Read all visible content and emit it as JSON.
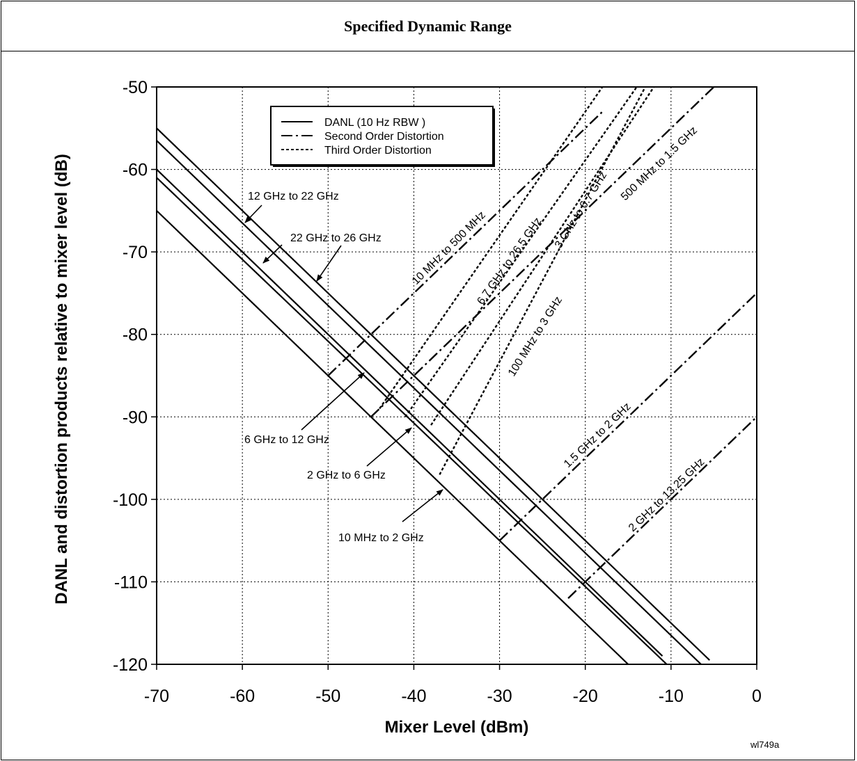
{
  "header": {
    "title": "Specified Dynamic Range"
  },
  "figure_id": "wl749a",
  "colors": {
    "line": "#000000",
    "grid": "#000000",
    "background": "#ffffff"
  },
  "chart_data": {
    "type": "line",
    "title": "",
    "xlabel": "Mixer Level (dBm)",
    "ylabel": "DANL and distortion products relative to mixer level (dB)",
    "xlim": [
      -70,
      0
    ],
    "ylim": [
      -120,
      -50
    ],
    "xticks": [
      -70,
      -60,
      -50,
      -40,
      -30,
      -20,
      -10,
      0
    ],
    "yticks": [
      -50,
      -60,
      -70,
      -80,
      -90,
      -100,
      -110,
      -120
    ],
    "grid": true,
    "legend": {
      "position": "top-left",
      "entries": [
        {
          "label": "DANL (10 Hz RBW )",
          "style": "solid"
        },
        {
          "label": "Second Order Distortion",
          "style": "dashdot"
        },
        {
          "label": "Third Order Distortion",
          "style": "dotted"
        }
      ]
    },
    "series": [
      {
        "name": "12 GHz to 22 GHz",
        "kind": "DANL",
        "style": "solid",
        "x": [
          -70,
          -5.5
        ],
        "y": [
          -55,
          -119.5
        ]
      },
      {
        "name": "22 GHz to 26 GHz",
        "kind": "DANL",
        "style": "solid",
        "x": [
          -70,
          -6.5
        ],
        "y": [
          -56.5,
          -120
        ]
      },
      {
        "name": "6 GHz to 12 GHz",
        "kind": "DANL",
        "style": "solid",
        "x": [
          -70,
          -11
        ],
        "y": [
          -60,
          -119
        ]
      },
      {
        "name": "2 GHz to 6 GHz",
        "kind": "DANL",
        "style": "solid",
        "x": [
          -70,
          -10.5
        ],
        "y": [
          -61,
          -120
        ]
      },
      {
        "name": "10 MHz to 2 GHz",
        "kind": "DANL",
        "style": "solid",
        "x": [
          -70,
          -15
        ],
        "y": [
          -65,
          -120
        ]
      },
      {
        "name": "10 MHz to 500 MHz",
        "kind": "Second Order Distortion",
        "style": "dashdot",
        "x": [
          -50,
          -18
        ],
        "y": [
          -85,
          -53
        ]
      },
      {
        "name": "500 MHz to 1.5 GHz",
        "kind": "Second Order Distortion",
        "style": "dashdot",
        "x": [
          -45,
          -5
        ],
        "y": [
          -90,
          -50
        ]
      },
      {
        "name": "1.5 GHz to 2 GHz",
        "kind": "Second Order Distortion",
        "style": "dashdot",
        "x": [
          -30,
          0
        ],
        "y": [
          -105,
          -75
        ]
      },
      {
        "name": "2 GHz to 13.25 GHz",
        "kind": "Second Order Distortion",
        "style": "dashdot",
        "x": [
          -22,
          0
        ],
        "y": [
          -112,
          -90
        ]
      },
      {
        "name": "6.7 GHz to 26.5 GHz",
        "kind": "Third Order Distortion",
        "style": "dotted",
        "x": [
          -44,
          -18
        ],
        "y": [
          -89,
          -50
        ]
      },
      {
        "name": "3 GHz to 6.7 GHz",
        "kind": "Third Order Distortion",
        "style": "dotted",
        "x": [
          -41,
          -14
        ],
        "y": [
          -90,
          -50
        ]
      },
      {
        "name": "100 MHz to 3 GHz",
        "kind": "Third Order Distortion",
        "style": "dotted",
        "x": [
          -37,
          -13
        ],
        "y": [
          -97,
          -50
        ]
      },
      {
        "name": "",
        "kind": "Third Order Distortion",
        "style": "dotted",
        "x": [
          -38,
          -12
        ],
        "y": [
          -91,
          -50
        ]
      }
    ],
    "annotations": [
      {
        "text": "12 GHz to 22 GHz"
      },
      {
        "text": "22 GHz to 26 GHz"
      },
      {
        "text": "6 GHz to 12 GHz"
      },
      {
        "text": "2 GHz to 6 GHz"
      },
      {
        "text": "10 MHz to 2 GHz"
      },
      {
        "text": "10 MHz to 500 MHz"
      },
      {
        "text": "6.7 GHz to 26.5 GHz"
      },
      {
        "text": "3 GHz to 6.7 GHz"
      },
      {
        "text": "500 MHz to 1.5 GHz"
      },
      {
        "text": "100 MHz to 3 GHz"
      },
      {
        "text": "1.5 GHz to 2 GHz"
      },
      {
        "text": "2 GHz to 13.25 GHz"
      }
    ]
  }
}
